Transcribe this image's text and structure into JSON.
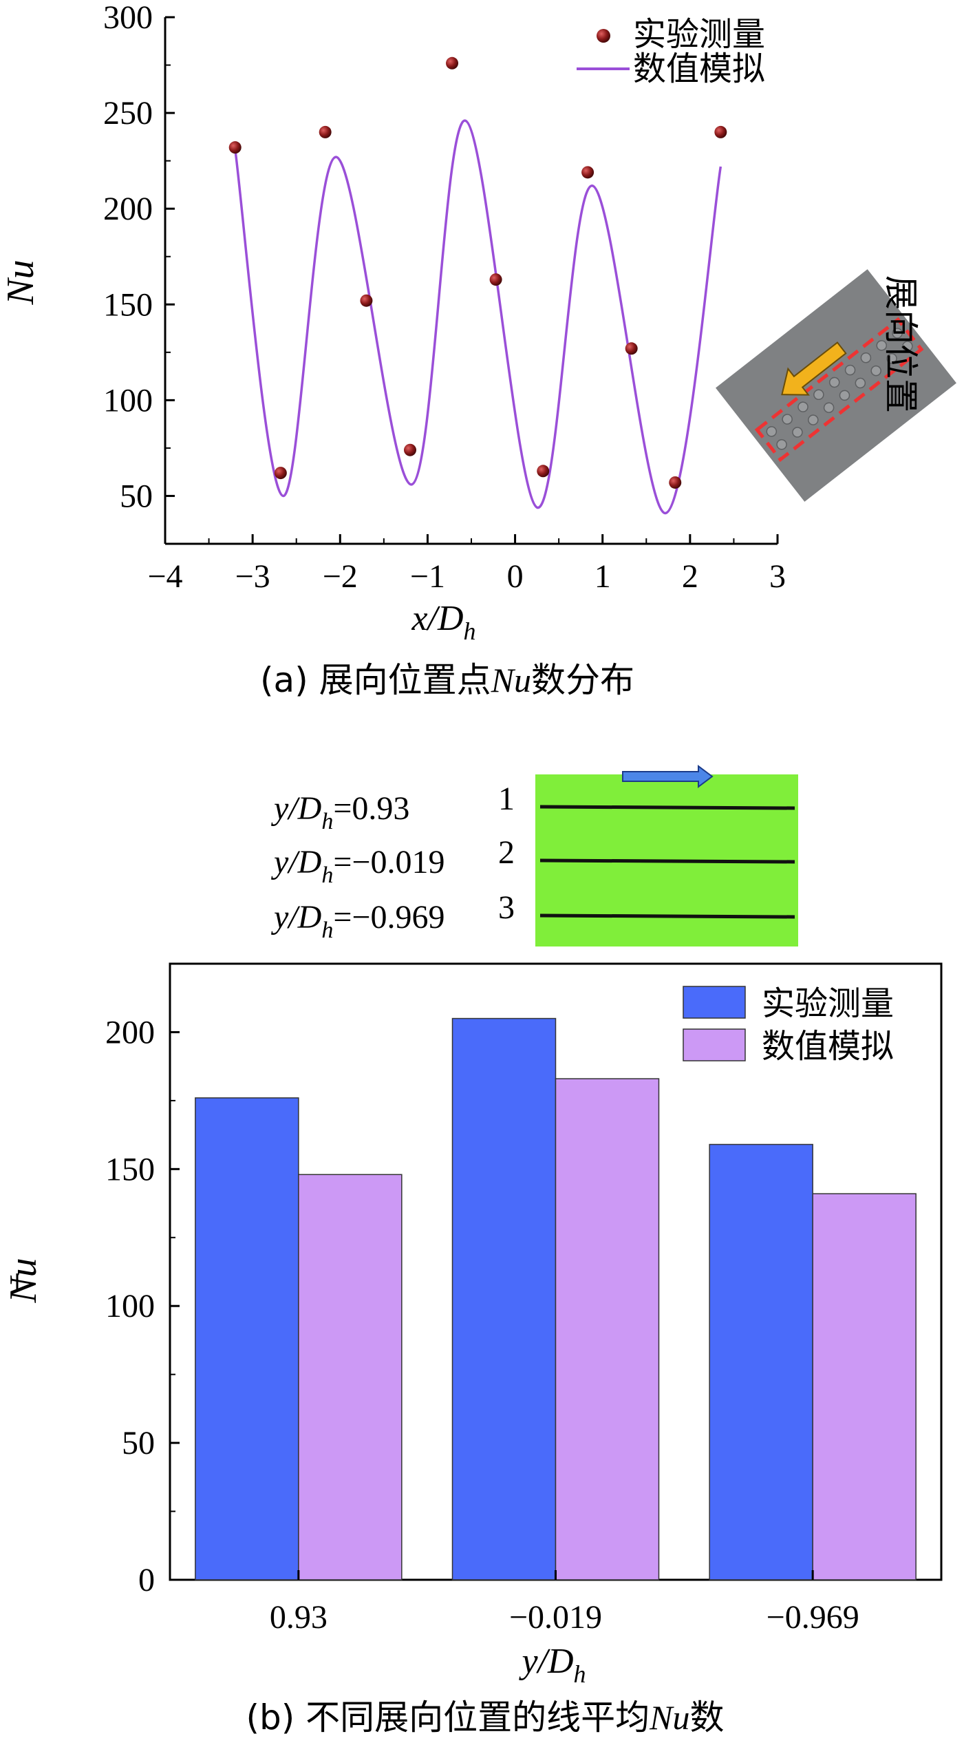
{
  "chart_data": [
    {
      "type": "line+scatter",
      "xlabel_main": "x/D",
      "xlabel_sub": "h",
      "ylabel": "Nu",
      "xlim": [
        -4,
        3
      ],
      "ylim": [
        25,
        300
      ],
      "xticks": [
        -4,
        -3,
        -2,
        -1,
        0,
        1,
        2,
        3
      ],
      "yticks": [
        50,
        100,
        150,
        200,
        250,
        300
      ],
      "legend_position": "top-right",
      "series": [
        {
          "name": "实验测量",
          "kind": "scatter",
          "color": "#8b1a1a",
          "x": [
            -3.2,
            -2.68,
            -2.17,
            -1.7,
            -1.2,
            -0.72,
            -0.22,
            0.32,
            0.83,
            1.33,
            1.83,
            2.35
          ],
          "y": [
            232,
            62,
            240,
            152,
            74,
            276,
            163,
            63,
            219,
            127,
            57,
            240
          ]
        },
        {
          "name": "数值模拟",
          "kind": "line",
          "color": "#9a4fd8",
          "x": [
            -3.2,
            -2.65,
            -2.05,
            -1.18,
            -0.57,
            0.25,
            0.88,
            1.72,
            2.35
          ],
          "y": [
            231,
            50,
            227,
            56,
            246,
            44,
            212,
            41,
            222
          ]
        }
      ],
      "inset": {
        "label": "展向位置"
      },
      "caption_pre": "(a) 展向位置点",
      "caption_it": "Nu",
      "caption_post": "数分布"
    },
    {
      "type": "bar",
      "categories": [
        "0.93",
        "−0.019",
        "−0.969"
      ],
      "series": [
        {
          "name": "实验测量",
          "color": "#4a6bfa",
          "values": [
            176,
            205,
            159
          ]
        },
        {
          "name": "数值模拟",
          "color": "#cc99f5",
          "values": [
            148,
            183,
            141
          ]
        }
      ],
      "ylim": [
        0,
        225
      ],
      "yticks": [
        0,
        50,
        100,
        150,
        200
      ],
      "xlabel_main": "y/D",
      "xlabel_sub": "h",
      "ylabel": "Nu",
      "legend_position": "top-right",
      "inset": {
        "lines": [
          {
            "label": "=0.93",
            "num": "1"
          },
          {
            "label": "=−0.019",
            "num": "2"
          },
          {
            "label": "=−0.969",
            "num": "3"
          }
        ],
        "label_prefix": "y/D",
        "label_sub": "h",
        "bg_color": "#80ee3a"
      },
      "caption_pre": "(b) 不同展向位置的线平均",
      "caption_it": "Nu",
      "caption_post": "数"
    }
  ]
}
